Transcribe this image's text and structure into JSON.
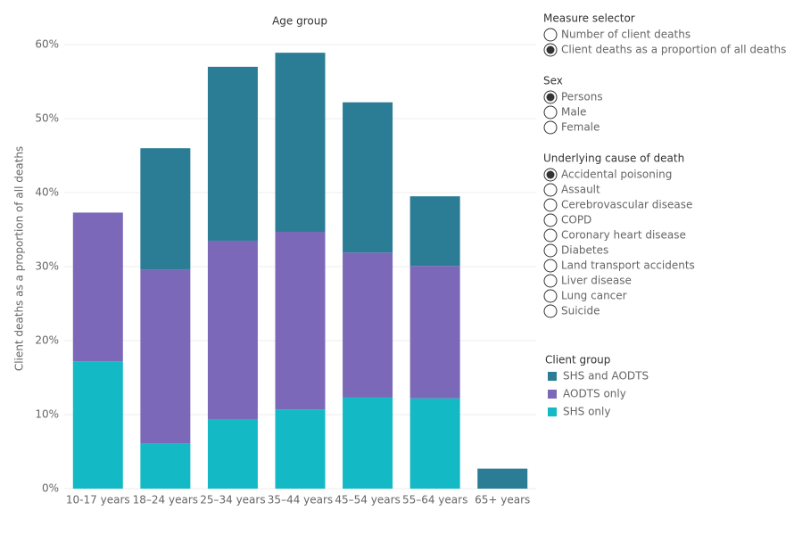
{
  "chart_data": {
    "type": "stacked_bar",
    "title": "Age group",
    "y_label": "Client deaths as a proportion of all deaths",
    "categories": [
      "10-17 years",
      "18–24 years",
      "25–34 years",
      "35–44 years",
      "45–54 years",
      "55–64 years",
      "65+ years"
    ],
    "series": [
      {
        "name": "SHS and AODTS",
        "color": "#2b7d96",
        "values": [
          null,
          16.4,
          23.5,
          24.2,
          20.3,
          9.4,
          2.7
        ]
      },
      {
        "name": "AODTS only",
        "color": "#7b68b8",
        "values": [
          20.1,
          23.5,
          24.1,
          24.0,
          19.6,
          17.9,
          null
        ]
      },
      {
        "name": "SHS only",
        "color": "#13b9c4",
        "values": [
          17.2,
          6.1,
          9.4,
          10.7,
          12.3,
          12.2,
          null
        ]
      }
    ],
    "legend_title": "Client group",
    "ylim": [
      0,
      60
    ],
    "yticks": [
      {
        "value": 0,
        "label": "0%"
      },
      {
        "value": 10,
        "label": "10%"
      },
      {
        "value": 20,
        "label": "20%"
      },
      {
        "value": 30,
        "label": "30%"
      },
      {
        "value": 40,
        "label": "40%"
      },
      {
        "value": 50,
        "label": "50%"
      },
      {
        "value": 60,
        "label": "60%"
      }
    ],
    "grid": true
  },
  "controls": [
    {
      "title": "Measure selector",
      "options": [
        "Number of client deaths",
        "Client deaths as a proportion of all deaths"
      ],
      "selected": 1
    },
    {
      "title": "Sex",
      "options": [
        "Persons",
        "Male",
        "Female"
      ],
      "selected": 0
    },
    {
      "title": "Underlying cause of death",
      "options": [
        "Accidental poisoning",
        "Assault",
        "Cerebrovascular disease",
        "COPD",
        "Coronary heart disease",
        "Diabetes",
        "Land transport accidents",
        "Liver disease",
        "Lung cancer",
        "Suicide"
      ],
      "selected": 0
    }
  ]
}
